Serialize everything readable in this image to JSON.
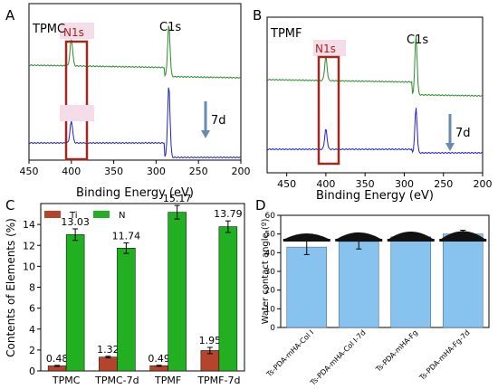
{
  "chart_data": [
    {
      "panel": "A",
      "type": "line",
      "sample_label": "TPMC",
      "xlabel": "Binding Energy (eV)",
      "xlim": [
        450,
        200
      ],
      "x_ticks": [
        450,
        400,
        350,
        300,
        250,
        200
      ],
      "peak_labels": [
        "N1s",
        "C1s"
      ],
      "annotation": "7d",
      "series": [
        {
          "color": "#2e8b2e",
          "peaks": [
            {
              "x": 400,
              "h": 0.5
            },
            {
              "x": 285,
              "h": 1.0
            }
          ]
        },
        {
          "color": "#2020d0",
          "peaks": [
            {
              "x": 400,
              "h": 0.3
            },
            {
              "x": 285,
              "h": 1.0
            }
          ]
        }
      ]
    },
    {
      "panel": "B",
      "type": "line",
      "sample_label": "TPMF",
      "xlabel": "Binding Energy (eV)",
      "xlim": [
        475,
        200
      ],
      "x_ticks": [
        450,
        400,
        350,
        300,
        250,
        200
      ],
      "peak_labels": [
        "N1s",
        "C1s"
      ],
      "annotation": "7d",
      "series": [
        {
          "color": "#2e8b2e",
          "peaks": [
            {
              "x": 400,
              "h": 0.4
            },
            {
              "x": 285,
              "h": 1.0
            }
          ]
        },
        {
          "color": "#2020d0",
          "peaks": [
            {
              "x": 400,
              "h": 0.45
            },
            {
              "x": 285,
              "h": 1.0
            }
          ]
        }
      ]
    },
    {
      "panel": "C",
      "type": "bar",
      "ylabel": "Contents of Elements (%)",
      "ylim": [
        0,
        16
      ],
      "y_ticks": [
        0,
        2,
        4,
        6,
        8,
        10,
        12,
        14
      ],
      "categories": [
        "TPMC",
        "TPMC-7d",
        "TPMF",
        "TPMF-7d"
      ],
      "legend": "top-left",
      "series": [
        {
          "name": "Ti",
          "color": "#b5442c",
          "values": [
            0.48,
            1.32,
            0.49,
            1.95
          ],
          "errors": [
            0.05,
            0.08,
            0.05,
            0.3
          ]
        },
        {
          "name": "N",
          "color": "#22b022",
          "values": [
            13.03,
            11.74,
            15.17,
            13.79
          ],
          "errors": [
            0.55,
            0.5,
            0.65,
            0.55
          ]
        }
      ],
      "value_labels": {
        "Ti": [
          "0.48",
          "1.32",
          "0.49",
          "1.95"
        ],
        "N": [
          "13.03",
          "11.74",
          "15.17",
          "13.79"
        ]
      }
    },
    {
      "panel": "D",
      "type": "bar",
      "ylabel": "Water contact angle (º)",
      "ylim": [
        0,
        60
      ],
      "y_ticks": [
        0,
        10,
        20,
        30,
        40,
        50,
        60
      ],
      "categories": [
        "Ts-PDA-mHA-Col I",
        "Ts-PDA-mHA-Col I-7d",
        "Ts-PDA-mHA-Fg",
        "Ts-PDA-mHA-Fg-7d"
      ],
      "series": [
        {
          "color": "#87c3ee",
          "values": [
            43,
            46,
            48.5,
            50
          ],
          "errors": [
            4,
            4,
            2,
            2
          ]
        }
      ]
    }
  ],
  "panels": {
    "a": "A",
    "b": "B",
    "c": "C",
    "d": "D"
  }
}
